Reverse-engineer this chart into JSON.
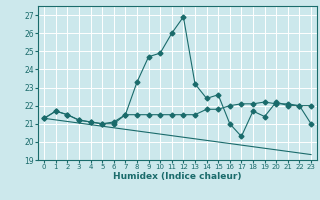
{
  "title": "",
  "xlabel": "Humidex (Indice chaleur)",
  "ylabel": "",
  "background_color": "#cce8ec",
  "grid_color": "#ffffff",
  "line_color": "#1a6b6b",
  "xlim": [
    -0.5,
    23.5
  ],
  "ylim": [
    19,
    27.5
  ],
  "yticks": [
    19,
    20,
    21,
    22,
    23,
    24,
    25,
    26,
    27
  ],
  "xticks": [
    0,
    1,
    2,
    3,
    4,
    5,
    6,
    7,
    8,
    9,
    10,
    11,
    12,
    13,
    14,
    15,
    16,
    17,
    18,
    19,
    20,
    21,
    22,
    23
  ],
  "series": [
    {
      "x": [
        0,
        1,
        2,
        3,
        4,
        5,
        6,
        7,
        8,
        9,
        10,
        11,
        12,
        13,
        14,
        15,
        16,
        17,
        18,
        19,
        20,
        21,
        22,
        23
      ],
      "y": [
        21.3,
        21.7,
        21.5,
        21.2,
        21.1,
        21.0,
        21.0,
        21.5,
        23.3,
        24.7,
        24.9,
        26.0,
        26.9,
        23.2,
        22.4,
        22.6,
        21.0,
        20.3,
        21.7,
        21.4,
        22.2,
        22.0,
        22.0,
        21.0
      ],
      "has_marker": true
    },
    {
      "x": [
        0,
        1,
        2,
        3,
        4,
        5,
        6,
        7,
        8,
        9,
        10,
        11,
        12,
        13,
        14,
        15,
        16,
        17,
        18,
        19,
        20,
        21,
        22,
        23
      ],
      "y": [
        21.3,
        21.7,
        21.5,
        21.2,
        21.1,
        21.0,
        21.1,
        21.5,
        21.5,
        21.5,
        21.5,
        21.5,
        21.5,
        21.5,
        21.8,
        21.8,
        22.0,
        22.1,
        22.1,
        22.2,
        22.1,
        22.1,
        22.0,
        22.0
      ],
      "has_marker": true
    },
    {
      "x": [
        0,
        23
      ],
      "y": [
        21.3,
        19.3
      ],
      "has_marker": false
    }
  ]
}
